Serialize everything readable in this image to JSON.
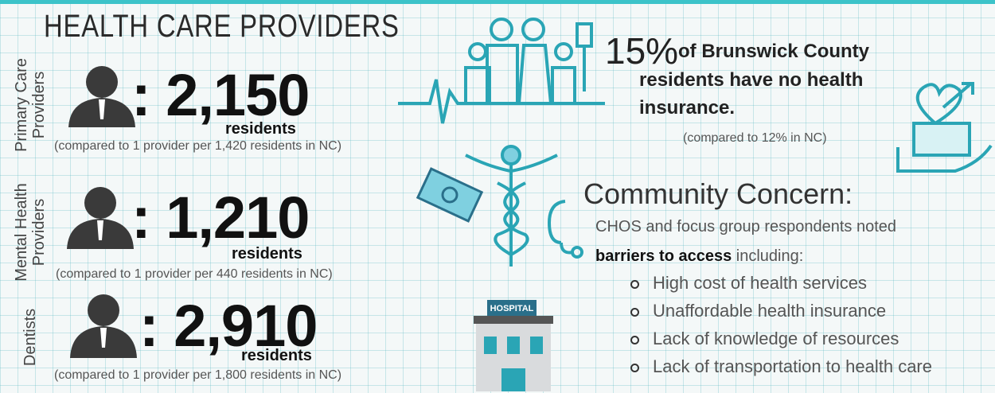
{
  "header": {
    "title": "HEALTH CARE PROVIDERS"
  },
  "providers": [
    {
      "label_lines": [
        "Primary Care",
        "Providers"
      ],
      "ratio": ": 2,150",
      "unit": "residents",
      "comparison": "(compared to 1 provider per 1,420 residents in NC)"
    },
    {
      "label_lines": [
        "Mental Health",
        "Providers"
      ],
      "ratio": ": 1,210",
      "unit": "residents",
      "comparison": "(compared to 1 provider per 440 residents in NC)"
    },
    {
      "label_lines": [
        "Dentists"
      ],
      "ratio": ": 2,910",
      "unit": "residents",
      "comparison": "(compared to 1 provider per 1,800 residents in NC)"
    }
  ],
  "insurance": {
    "percent": "15%",
    "lines": [
      "of Brunswick County",
      "residents have no health",
      "insurance."
    ],
    "comparison": "(compared to 12% in NC)"
  },
  "concern": {
    "title": "Community Concern:",
    "intro": "CHOS and focus group respondents noted",
    "emphasis": "barriers to access",
    "intro_end": "including:",
    "bullets": [
      "High cost of health services",
      "Unaffordable health insurance",
      "Lack of knowledge of resources",
      "Lack of transportation to health care"
    ]
  },
  "hospital_sign": "HOSPITAL"
}
